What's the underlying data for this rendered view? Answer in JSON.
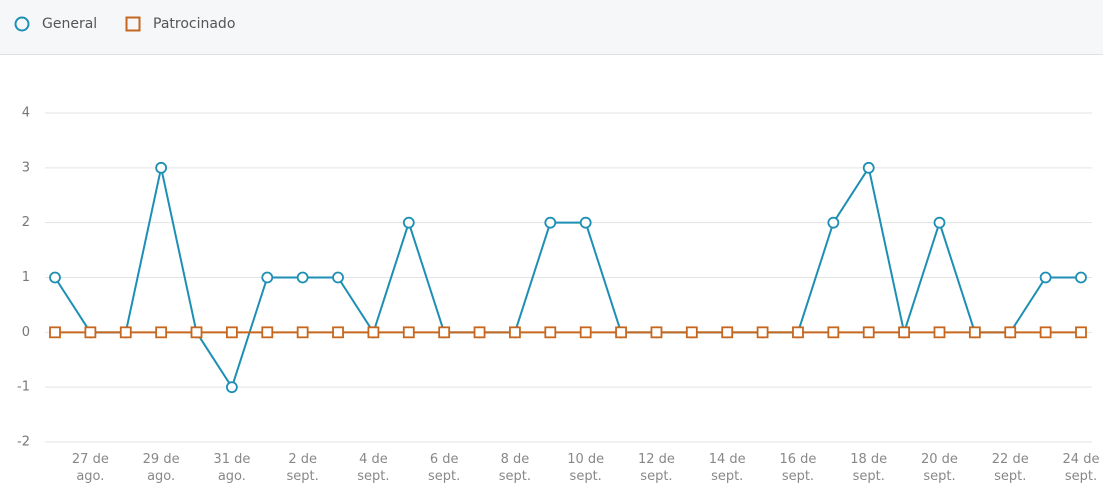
{
  "chart_data": {
    "type": "line",
    "categories": [
      null,
      "27 de\nago.",
      null,
      "29 de\nago.",
      null,
      "31 de\nago.",
      null,
      "2 de sept.",
      null,
      "4 de\nsept.",
      null,
      "6 de sept.",
      null,
      "8 de sept.",
      null,
      "10 de\nsept.",
      null,
      "12 de\nsept.",
      null,
      "14 de\nsept.",
      null,
      "16 de\nsept.",
      null,
      "18 de\nsept.",
      null,
      "20 de\nsept.",
      null,
      "22 de\nsept.",
      null,
      "24 de\nsept."
    ],
    "series": [
      {
        "name": "General",
        "color": "#1e8fb4",
        "marker": "circle",
        "values": [
          1,
          0,
          0,
          3,
          0,
          -1,
          1,
          1,
          1,
          0,
          2,
          0,
          0,
          0,
          2,
          2,
          0,
          0,
          0,
          0,
          0,
          0,
          2,
          3,
          0,
          2,
          0,
          0,
          1,
          1
        ]
      },
      {
        "name": "Patrocinado",
        "color": "#c7671f",
        "marker": "square",
        "values": [
          0,
          0,
          0,
          0,
          0,
          0,
          0,
          0,
          0,
          0,
          0,
          0,
          0,
          0,
          0,
          0,
          0,
          0,
          0,
          0,
          0,
          0,
          0,
          0,
          0,
          0,
          0,
          0,
          0,
          0
        ]
      }
    ],
    "ylim": [
      -2,
      4
    ],
    "yticks": [
      -2,
      -1,
      0,
      1,
      2,
      3,
      4
    ],
    "grid": true,
    "legend": "top"
  }
}
